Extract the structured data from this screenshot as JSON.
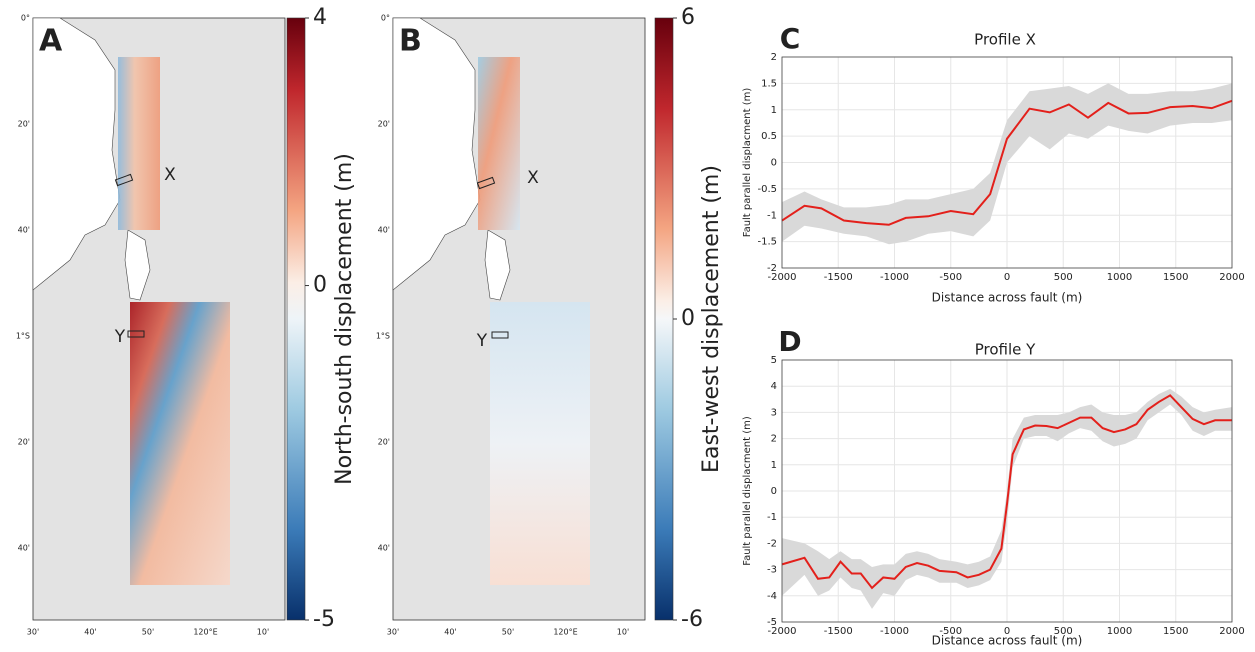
{
  "chart_data": [
    {
      "type": "map",
      "panel": "A",
      "colorbar": {
        "label": "North-south displacement (m)",
        "lim": [
          -5,
          4
        ],
        "ticks": [
          4,
          0,
          -5
        ]
      },
      "lat_labels": [
        "0°",
        "20'",
        "40'",
        "1°S",
        "20'",
        "40'"
      ],
      "lon_labels": [
        "30'",
        "40'",
        "50'",
        "120°E",
        "10'"
      ],
      "profiles": [
        "X",
        "Y"
      ]
    },
    {
      "type": "map",
      "panel": "B",
      "colorbar": {
        "label": "East-west displacement (m)",
        "lim": [
          -6,
          6
        ],
        "ticks": [
          6,
          0,
          -6
        ]
      },
      "lat_labels": [
        "0°",
        "20'",
        "40'",
        "1°S",
        "20'",
        "40'"
      ],
      "lon_labels": [
        "30'",
        "40'",
        "50'",
        "120°E",
        "10'"
      ],
      "profiles": [
        "X",
        "Y"
      ]
    },
    {
      "type": "line",
      "panel": "C",
      "title": "Profile X",
      "xlabel": "Distance across fault (m)",
      "ylabel": "Fault parallel displacment (m)",
      "x": [
        -2000,
        -1800,
        -1650,
        -1450,
        -1250,
        -1050,
        -900,
        -700,
        -500,
        -300,
        -150,
        0,
        200,
        380,
        550,
        720,
        900,
        1080,
        1250,
        1450,
        1650,
        1820,
        2000
      ],
      "values": [
        -1.1,
        -0.82,
        -0.87,
        -1.1,
        -1.15,
        -1.18,
        -1.05,
        -1.02,
        -0.92,
        -0.98,
        -0.6,
        0.45,
        1.02,
        0.95,
        1.1,
        0.85,
        1.13,
        0.93,
        0.94,
        1.05,
        1.07,
        1.03,
        1.17
      ],
      "upper": [
        -0.75,
        -0.55,
        -0.7,
        -0.85,
        -0.85,
        -0.8,
        -0.7,
        -0.7,
        -0.6,
        -0.5,
        -0.2,
        0.8,
        1.35,
        1.4,
        1.45,
        1.3,
        1.5,
        1.3,
        1.3,
        1.35,
        1.35,
        1.4,
        1.5
      ],
      "lower": [
        -1.5,
        -1.2,
        -1.25,
        -1.35,
        -1.4,
        -1.55,
        -1.5,
        -1.35,
        -1.3,
        -1.4,
        -1.1,
        0.0,
        0.5,
        0.25,
        0.55,
        0.45,
        0.7,
        0.6,
        0.55,
        0.7,
        0.75,
        0.75,
        0.8
      ],
      "color": "#e3201b",
      "band_color": "#d9d9d9",
      "xlim": [
        -2000,
        2000
      ],
      "ylim": [
        -2,
        2
      ],
      "xticks": [
        -2000,
        -1500,
        -1000,
        -500,
        0,
        500,
        1000,
        1500,
        2000
      ],
      "yticks": [
        -2,
        -1.5,
        -1,
        -0.5,
        0,
        0.5,
        1,
        1.5,
        2
      ],
      "grid": true
    },
    {
      "type": "line",
      "panel": "D",
      "title": "Profile Y",
      "xlabel": "Distance across fault (m)",
      "ylabel": "Fault parallel displacment (m)",
      "x": [
        -2000,
        -1800,
        -1680,
        -1580,
        -1480,
        -1380,
        -1300,
        -1200,
        -1100,
        -1000,
        -900,
        -800,
        -700,
        -600,
        -450,
        -350,
        -250,
        -150,
        -50,
        0,
        50,
        150,
        250,
        350,
        450,
        550,
        650,
        750,
        850,
        950,
        1050,
        1150,
        1250,
        1350,
        1450,
        1550,
        1650,
        1750,
        1850,
        2000
      ],
      "values": [
        -2.8,
        -2.55,
        -3.35,
        -3.3,
        -2.7,
        -3.15,
        -3.15,
        -3.7,
        -3.3,
        -3.35,
        -2.9,
        -2.75,
        -2.85,
        -3.05,
        -3.1,
        -3.3,
        -3.2,
        -3.0,
        -2.2,
        -0.5,
        1.4,
        2.35,
        2.5,
        2.48,
        2.4,
        2.6,
        2.8,
        2.8,
        2.4,
        2.25,
        2.35,
        2.55,
        3.1,
        3.4,
        3.65,
        3.2,
        2.75,
        2.55,
        2.7,
        2.7
      ],
      "upper": [
        -1.8,
        -2.0,
        -2.3,
        -2.6,
        -2.3,
        -2.6,
        -2.6,
        -2.9,
        -2.8,
        -2.8,
        -2.4,
        -2.3,
        -2.4,
        -2.6,
        -2.7,
        -2.8,
        -2.7,
        -2.5,
        -1.5,
        0.0,
        2.0,
        2.8,
        2.9,
        2.9,
        2.9,
        3.0,
        3.2,
        3.3,
        3.0,
        2.9,
        2.9,
        3.0,
        3.4,
        3.7,
        3.9,
        3.6,
        3.2,
        3.0,
        3.1,
        3.2
      ],
      "lower": [
        -4.0,
        -3.2,
        -4.0,
        -3.8,
        -3.3,
        -3.7,
        -3.8,
        -4.5,
        -3.9,
        -4.0,
        -3.4,
        -3.2,
        -3.3,
        -3.5,
        -3.5,
        -3.7,
        -3.6,
        -3.4,
        -2.7,
        -1.2,
        0.9,
        2.0,
        2.1,
        2.1,
        1.9,
        2.2,
        2.4,
        2.3,
        1.9,
        1.7,
        1.8,
        2.0,
        2.7,
        3.0,
        3.3,
        2.9,
        2.3,
        2.1,
        2.3,
        2.3
      ],
      "color": "#e3201b",
      "band_color": "#d9d9d9",
      "xlim": [
        -2000,
        2000
      ],
      "ylim": [
        -5,
        5
      ],
      "xticks": [
        -2000,
        -1500,
        -1000,
        -500,
        0,
        500,
        1000,
        1500,
        2000
      ],
      "yticks": [
        -5,
        -4,
        -3,
        -2,
        -1,
        0,
        1,
        2,
        3,
        4,
        5
      ],
      "grid": true
    }
  ]
}
